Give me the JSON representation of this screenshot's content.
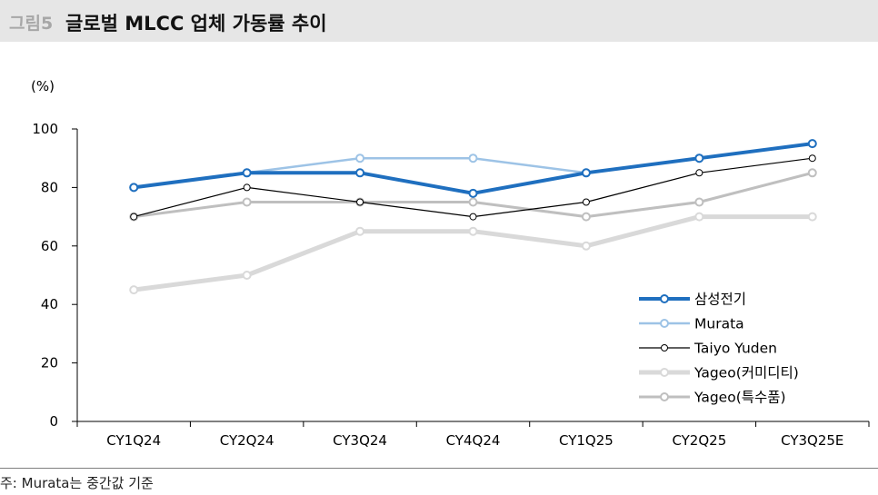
{
  "header": {
    "figure_label": "그림5",
    "title": "글로벌 MLCC 업체 가동률 추이"
  },
  "chart_data": {
    "type": "line",
    "title": "글로벌 MLCC 업체 가동률 추이",
    "ylabel": "(%)",
    "xlabel": "",
    "categories": [
      "CY1Q24",
      "CY2Q24",
      "CY3Q24",
      "CY4Q24",
      "CY1Q25",
      "CY2Q25",
      "CY3Q25E"
    ],
    "ylim": [
      0,
      100
    ],
    "yticks": [
      0,
      20,
      40,
      60,
      80,
      100
    ],
    "grid": false,
    "legend_position": "bottom-right",
    "series": [
      {
        "name": "Yageo(커미디티)",
        "color": "#d9d9d9",
        "values": [
          45,
          50,
          65,
          65,
          60,
          70,
          70
        ]
      },
      {
        "name": "Yageo(특수품)",
        "color": "#bfbfbf",
        "values": [
          70,
          75,
          75,
          75,
          70,
          75,
          85
        ]
      },
      {
        "name": "Taiyo Yuden",
        "color": "#000000",
        "values": [
          70,
          80,
          75,
          70,
          75,
          85,
          90
        ]
      },
      {
        "name": "Murata",
        "color": "#9dc3e6",
        "values": [
          80,
          85,
          90,
          90,
          85,
          90,
          95
        ]
      },
      {
        "name": "삼성전기",
        "color": "#1f6fbf",
        "values": [
          80,
          85,
          85,
          78,
          85,
          90,
          95
        ]
      }
    ],
    "legend_order": [
      "삼성전기",
      "Murata",
      "Taiyo Yuden",
      "Yageo(커미디티)",
      "Yageo(특수품)"
    ]
  },
  "footnote": "주: Murata는 중간값 기준"
}
